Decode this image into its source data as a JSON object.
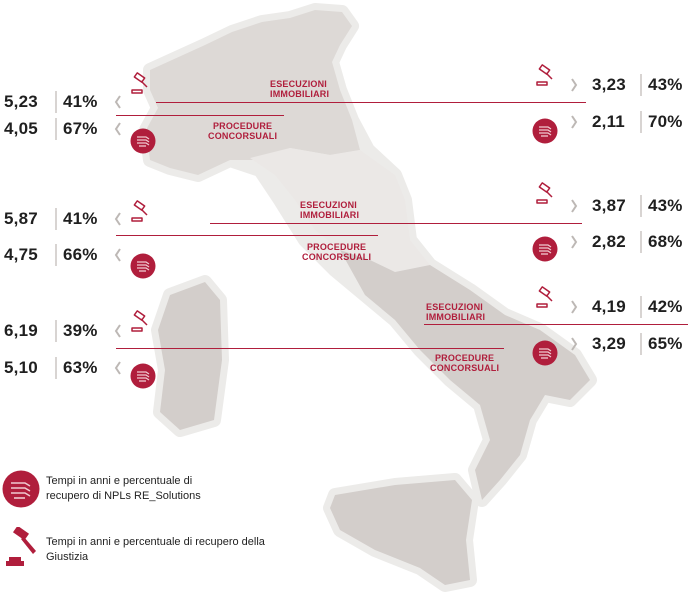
{
  "regions": [
    {
      "id": "north",
      "esecuzioni_label": [
        "ESECUZIONI",
        "IMMOBILIARI"
      ],
      "procedure_label": [
        "PROCEDURE",
        "CONCORSUALI"
      ],
      "left": {
        "giustizia_years": "5,23",
        "giustizia_pct": "41%",
        "nrs_years": "4,05",
        "nrs_pct": "67%"
      },
      "right": {
        "giustizia_years": "3,23",
        "giustizia_pct": "43%",
        "nrs_years": "2,11",
        "nrs_pct": "70%"
      }
    },
    {
      "id": "center",
      "esecuzioni_label": [
        "ESECUZIONI",
        "IMMOBILIARI"
      ],
      "procedure_label": [
        "PROCEDURE",
        "CONCORSUALI"
      ],
      "left": {
        "giustizia_years": "5,87",
        "giustizia_pct": "41%",
        "nrs_years": "4,75",
        "nrs_pct": "66%"
      },
      "right": {
        "giustizia_years": "3,87",
        "giustizia_pct": "43%",
        "nrs_years": "2,82",
        "nrs_pct": "68%"
      }
    },
    {
      "id": "south",
      "esecuzioni_label": [
        "ESECUZIONI",
        "IMMOBILIARI"
      ],
      "procedure_label": [
        "PROCEDURE",
        "CONCORSUALI"
      ],
      "left": {
        "giustizia_years": "6,19",
        "giustizia_pct": "39%",
        "nrs_years": "5,10",
        "nrs_pct": "63%"
      },
      "right": {
        "giustizia_years": "4,19",
        "giustizia_pct": "42%",
        "nrs_years": "3,29",
        "nrs_pct": "65%"
      }
    }
  ],
  "legend": {
    "nrs_line1": "Tempi in anni e percentuale di",
    "nrs_line2": "recupero di NPLs RE_Solutions",
    "giustizia_line1": "Tempi in anni e percentuale di recupero della",
    "giustizia_line2": "Giustizia"
  },
  "colors": {
    "accent": "#b01e3c",
    "map_outline": "#e9e7e5",
    "map_north": "#ddd9d6",
    "map_center": "#ebe8e6",
    "map_south": "#d3cecb",
    "text": "#1f1f1f"
  },
  "icons": {
    "nrs": "coin-stack-icon",
    "giustizia": "gavel-icon"
  }
}
